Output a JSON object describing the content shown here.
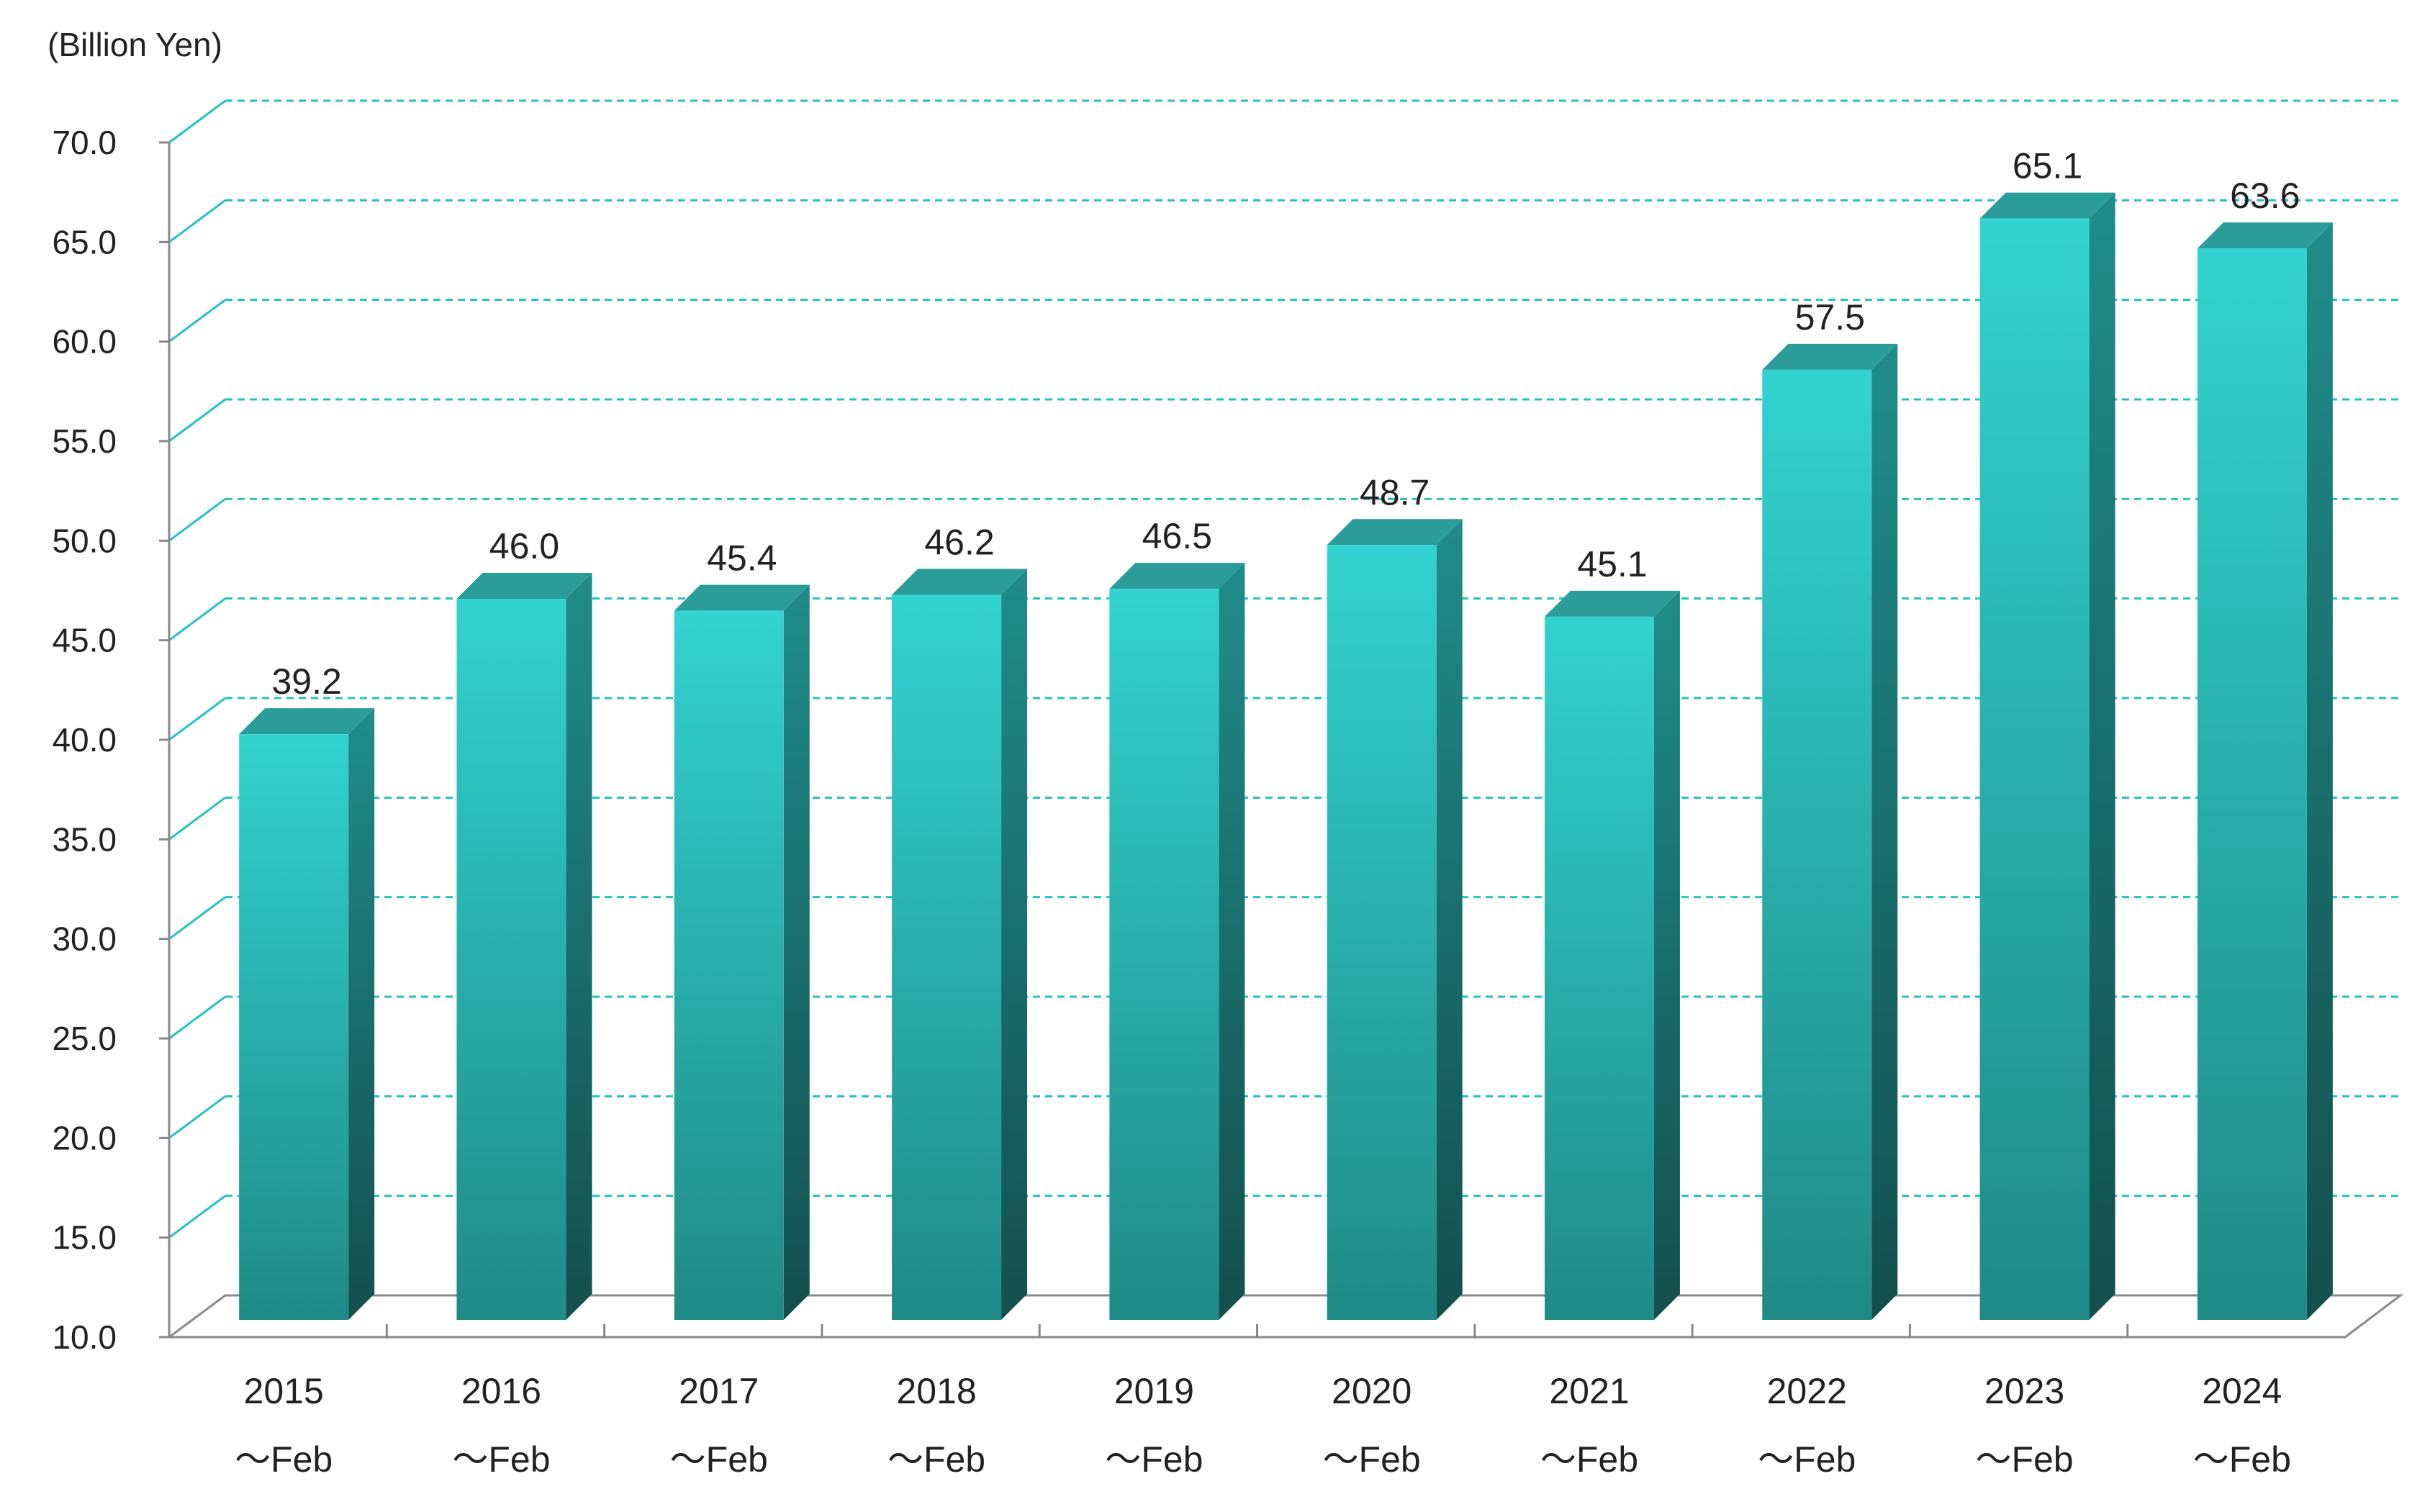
{
  "chart_data": {
    "type": "bar",
    "unit_label": "(Billion Yen)",
    "categories": [
      [
        "2015",
        "～Feb"
      ],
      [
        "2016",
        "～Feb"
      ],
      [
        "2017",
        "～Feb"
      ],
      [
        "2018",
        "～Feb"
      ],
      [
        "2019",
        "～Feb"
      ],
      [
        "2020",
        "～Feb"
      ],
      [
        "2021",
        "～Feb"
      ],
      [
        "2022",
        "～Feb"
      ],
      [
        "2023",
        "～Feb"
      ],
      [
        "2024",
        "～Feb"
      ]
    ],
    "values": [
      39.2,
      46.0,
      45.4,
      46.2,
      46.5,
      48.7,
      45.1,
      57.5,
      65.1,
      63.6
    ],
    "value_labels": [
      "39.2",
      "46.0",
      "45.4",
      "46.2",
      "46.5",
      "48.7",
      "45.1",
      "57.5",
      "65.1",
      "63.6"
    ],
    "ylim": [
      10.0,
      70.0
    ],
    "yticks": [
      "10.0",
      "15.0",
      "20.0",
      "25.0",
      "30.0",
      "35.0",
      "40.0",
      "45.0",
      "50.0",
      "55.0",
      "60.0",
      "65.0",
      "70.0"
    ],
    "grid": true,
    "style": "3d-column",
    "colors": {
      "bar_top": "#32d3d0",
      "bar_bottom": "#1f8a87",
      "bar_side": "#1a6f6c",
      "bar_cap": "#2a9c99",
      "grid": "#24c1c0",
      "axis": "#888888"
    }
  }
}
